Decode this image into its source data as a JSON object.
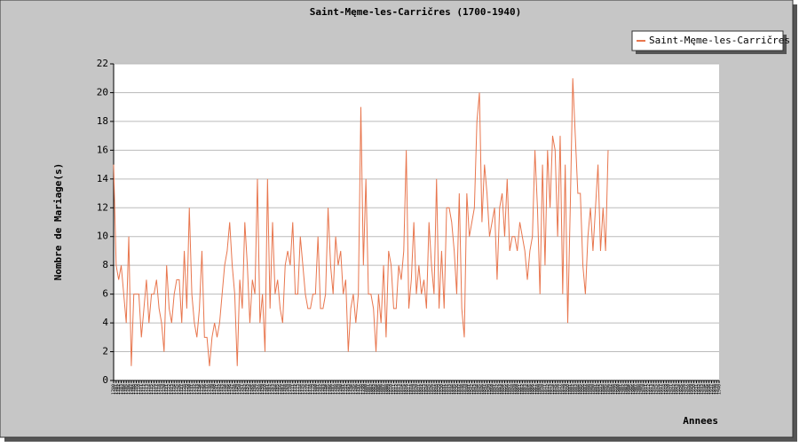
{
  "chart_data": {
    "type": "line",
    "title": "Saint-Męme-les-Carričres (1700-1940)",
    "y_label": "Nombre de Mariage(s)",
    "x_label": "Annees",
    "legend_position": "top-right",
    "grid": true,
    "ylim": [
      0,
      22
    ],
    "yticks": [
      0,
      2,
      4,
      6,
      8,
      10,
      12,
      14,
      16,
      18,
      20,
      22
    ],
    "categories": [
      "1700",
      "1701",
      "1702",
      "1703",
      "1704",
      "1705",
      "1706",
      "1707",
      "1708",
      "1709",
      "1710",
      "1711",
      "1712",
      "1713",
      "1714",
      "1715",
      "1716",
      "1717",
      "1718",
      "1719",
      "1720",
      "1721",
      "1722",
      "1723",
      "1724",
      "1725",
      "1726",
      "1727",
      "1728",
      "1729",
      "1730",
      "1731",
      "1732",
      "1733",
      "1734",
      "1735",
      "1736",
      "1737",
      "1738",
      "1739",
      "1740",
      "1741",
      "1742",
      "1743",
      "1744",
      "1745",
      "1746",
      "1747",
      "1748",
      "1749",
      "1750",
      "1751",
      "1752",
      "1753",
      "1754",
      "1755",
      "1756",
      "1757",
      "1758",
      "1759",
      "1760",
      "1761",
      "1762",
      "1763",
      "1764",
      "1765",
      "1766",
      "1767",
      "1768",
      "1769",
      "1770",
      "1771",
      "1772",
      "1773",
      "1774",
      "1775",
      "1776",
      "1777",
      "1778",
      "1779",
      "1780",
      "1781",
      "1782",
      "1783",
      "1784",
      "1785",
      "1786",
      "1787",
      "1788",
      "1789",
      "1790",
      "1791",
      "1792",
      "1793",
      "1794",
      "1795",
      "1796",
      "1797",
      "1798",
      "1799",
      "1800",
      "1801",
      "1802",
      "1803",
      "1804",
      "1805",
      "1806",
      "1807",
      "1808",
      "1809",
      "1810",
      "1811",
      "1812",
      "1813",
      "1814",
      "1815",
      "1816",
      "1817",
      "1818",
      "1819",
      "1820",
      "1821",
      "1822",
      "1823",
      "1824",
      "1825",
      "1826",
      "1827",
      "1828",
      "1829",
      "1830",
      "1831",
      "1832",
      "1833",
      "1834",
      "1835",
      "1836",
      "1837",
      "1838",
      "1839",
      "1840",
      "1841",
      "1842",
      "1843",
      "1844",
      "1845",
      "1846",
      "1847",
      "1848",
      "1849",
      "1850",
      "1851",
      "1852",
      "1853",
      "1854",
      "1855",
      "1856",
      "1857",
      "1858",
      "1859",
      "1860",
      "1861",
      "1862",
      "1863",
      "1864",
      "1865",
      "1866",
      "1867",
      "1868",
      "1869",
      "1870",
      "1871",
      "1872",
      "1873",
      "1874",
      "1875",
      "1876",
      "1877",
      "1878",
      "1879",
      "1880",
      "1881",
      "1882",
      "1883",
      "1884",
      "1885",
      "1886",
      "1887",
      "1888",
      "1889",
      "1890",
      "1891",
      "1892",
      "1893",
      "1894",
      "1895",
      "1896",
      "1897",
      "1898",
      "1899",
      "1900",
      "1901",
      "1902",
      "1903",
      "1904",
      "1905",
      "1906",
      "1907",
      "1908",
      "1909",
      "1910",
      "1911",
      "1912",
      "1913",
      "1914",
      "1915",
      "1916",
      "1917",
      "1918",
      "1919",
      "1920",
      "1921",
      "1922",
      "1923",
      "1924",
      "1925",
      "1926",
      "1927",
      "1928",
      "1929",
      "1930",
      "1931",
      "1932",
      "1933",
      "1934",
      "1935",
      "1936",
      "1937",
      "1938",
      "1939",
      "1940"
    ],
    "series": [
      {
        "name": "Saint-Męme-les-Carričres",
        "color": "#e8764e",
        "values": [
          15,
          8,
          7,
          8,
          6,
          4,
          10,
          1,
          6,
          6,
          6,
          3,
          5,
          7,
          4,
          6,
          6,
          7,
          5,
          4,
          2,
          8,
          5,
          4,
          6,
          7,
          7,
          4,
          9,
          5,
          12,
          6,
          4,
          3,
          5,
          9,
          3,
          3,
          1,
          3,
          4,
          3,
          4,
          6,
          8,
          9,
          11,
          8,
          6,
          1,
          7,
          5,
          11,
          8,
          4,
          7,
          6,
          14,
          4,
          6,
          2,
          14,
          5,
          11,
          6,
          7,
          5,
          4,
          8,
          9,
          8,
          11,
          6,
          6,
          10,
          8,
          6,
          5,
          5,
          6,
          6,
          10,
          5,
          5,
          6,
          12,
          8,
          6,
          10,
          8,
          9,
          6,
          7,
          2,
          5,
          6,
          4,
          6,
          19,
          8,
          14,
          6,
          6,
          5,
          2,
          6,
          4,
          8,
          3,
          9,
          8,
          5,
          5,
          8,
          7,
          9,
          16,
          5,
          7,
          11,
          6,
          8,
          6,
          7,
          5,
          11,
          8,
          6,
          14,
          5,
          9,
          5,
          12,
          12,
          11,
          9,
          6,
          13,
          5,
          3,
          13,
          10,
          11,
          12,
          18,
          20,
          11,
          15,
          13,
          10,
          11,
          12,
          7,
          12,
          13,
          10,
          14,
          9,
          10,
          10,
          9,
          11,
          10,
          9,
          7,
          9,
          10,
          16,
          12,
          6,
          15,
          8,
          16,
          12,
          17,
          16,
          10,
          17,
          6,
          15,
          4,
          12,
          21,
          17,
          13,
          13,
          8,
          6,
          10,
          12,
          9,
          12,
          15,
          9,
          12,
          9,
          16,
          null,
          null,
          null,
          null,
          null,
          null,
          null,
          null,
          null,
          null,
          null,
          null,
          null,
          null,
          null,
          null,
          null,
          null,
          null,
          null,
          null,
          null,
          null,
          null,
          null,
          null,
          null,
          null,
          null,
          null,
          null,
          null,
          null,
          null,
          null,
          null,
          null,
          null,
          null,
          null,
          null,
          null,
          null,
          null
        ]
      }
    ]
  }
}
